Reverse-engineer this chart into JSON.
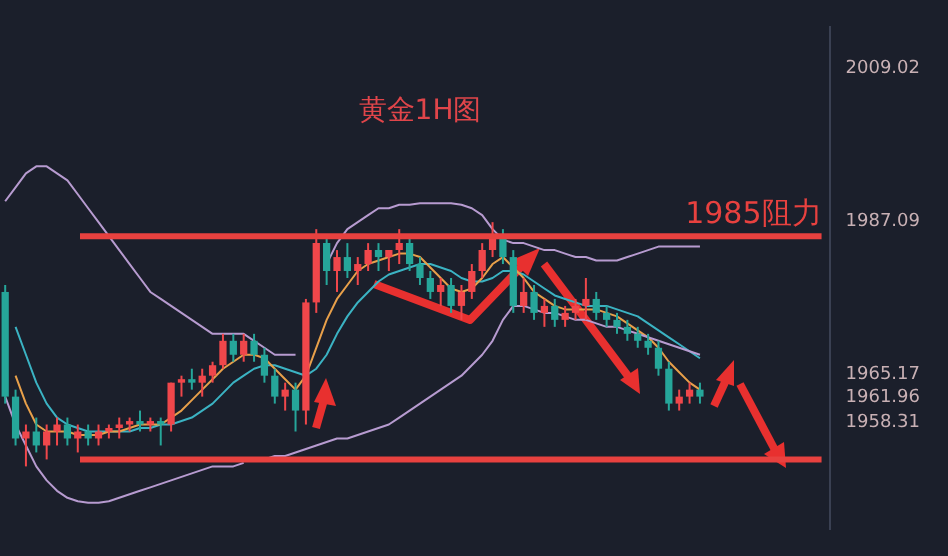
{
  "chart_data": {
    "type": "candlestick",
    "title": "黄金1H图",
    "categories": [
      null,
      null,
      null,
      null,
      null,
      null,
      null,
      null,
      null,
      null,
      null,
      null,
      null,
      null,
      null,
      null,
      null,
      null,
      null,
      null,
      null,
      null,
      null,
      null,
      null,
      null,
      null,
      null,
      null,
      null,
      null,
      null,
      null,
      null,
      null,
      null,
      null,
      null,
      null,
      null,
      null,
      null,
      null,
      null,
      null,
      null,
      null,
      null,
      null,
      null,
      null,
      null,
      null,
      null,
      null,
      null,
      null,
      null,
      null,
      null,
      null,
      null,
      null,
      null,
      null,
      null,
      null,
      null,
      null,
      null,
      null,
      null,
      null,
      null,
      null,
      null,
      null,
      null,
      null,
      null
    ],
    "ohlc": [
      [
        1977,
        1978,
        1961,
        1962
      ],
      [
        1962,
        1963,
        1955,
        1956
      ],
      [
        1956,
        1958,
        1952,
        1957
      ],
      [
        1957,
        1959,
        1954,
        1955
      ],
      [
        1955,
        1958,
        1953,
        1957
      ],
      [
        1957,
        1959,
        1955,
        1958
      ],
      [
        1958,
        1959,
        1955,
        1956
      ],
      [
        1956,
        1958,
        1954,
        1957
      ],
      [
        1957,
        1958,
        1955,
        1956
      ],
      [
        1956,
        1958,
        1955,
        1957
      ],
      [
        1957,
        1958,
        1956,
        1957.5
      ],
      [
        1957.5,
        1959,
        1956,
        1958
      ],
      [
        1958,
        1959,
        1957,
        1958.5
      ],
      [
        1958.5,
        1960,
        1957,
        1958
      ],
      [
        1958,
        1959,
        1957,
        1958.5
      ],
      [
        1958.5,
        1959,
        1955,
        1958
      ],
      [
        1958,
        1964,
        1957,
        1964
      ],
      [
        1964,
        1965,
        1962,
        1964.5
      ],
      [
        1964.5,
        1966,
        1963,
        1964
      ],
      [
        1964,
        1966,
        1962,
        1965
      ],
      [
        1965,
        1967,
        1964,
        1966.5
      ],
      [
        1966.5,
        1971,
        1966,
        1970
      ],
      [
        1970,
        1971,
        1967,
        1968
      ],
      [
        1968,
        1971,
        1967,
        1970
      ],
      [
        1970,
        1971,
        1967,
        1968
      ],
      [
        1968,
        1969,
        1964,
        1965
      ],
      [
        1965,
        1966,
        1961,
        1962
      ],
      [
        1962,
        1964,
        1960,
        1963
      ],
      [
        1963,
        1964,
        1957,
        1960
      ],
      [
        1960,
        1976,
        1958,
        1975.5
      ],
      [
        1975.5,
        1986,
        1974,
        1984
      ],
      [
        1984,
        1985,
        1978,
        1980
      ],
      [
        1980,
        1983,
        1977,
        1982
      ],
      [
        1982,
        1984,
        1979,
        1980
      ],
      [
        1980,
        1982,
        1978,
        1981
      ],
      [
        1981,
        1984,
        1980,
        1983
      ],
      [
        1983,
        1984,
        1980,
        1982
      ],
      [
        1982,
        1983,
        1980,
        1983
      ],
      [
        1983,
        1986,
        1981,
        1984
      ],
      [
        1984,
        1985,
        1980,
        1981
      ],
      [
        1981,
        1982,
        1978,
        1979
      ],
      [
        1979,
        1980,
        1976,
        1977
      ],
      [
        1977,
        1979,
        1975,
        1978
      ],
      [
        1978,
        1979,
        1974,
        1975
      ],
      [
        1975,
        1978,
        1973,
        1977
      ],
      [
        1977,
        1981,
        1976,
        1980
      ],
      [
        1980,
        1984,
        1979,
        1983
      ],
      [
        1983,
        1987,
        1982,
        1985
      ],
      [
        1985,
        1986,
        1981,
        1982
      ],
      [
        1982,
        1983,
        1974,
        1975
      ],
      [
        1975,
        1979,
        1974,
        1977
      ],
      [
        1977,
        1978,
        1973,
        1974
      ],
      [
        1974,
        1976,
        1972,
        1975
      ],
      [
        1975,
        1976,
        1972,
        1973
      ],
      [
        1973,
        1975,
        1972,
        1974
      ],
      [
        1974,
        1976,
        1973,
        1975
      ],
      [
        1975,
        1979,
        1973,
        1976
      ],
      [
        1976,
        1977,
        1973,
        1974
      ],
      [
        1974,
        1975,
        1972,
        1973
      ],
      [
        1973,
        1974,
        1971,
        1972
      ],
      [
        1972,
        1973,
        1970,
        1971
      ],
      [
        1971,
        1972,
        1969,
        1970
      ],
      [
        1970,
        1971,
        1968,
        1969
      ],
      [
        1969,
        1970,
        1965,
        1966
      ],
      [
        1966,
        1967,
        1960,
        1961
      ],
      [
        1961,
        1963,
        1960,
        1962
      ],
      [
        1962,
        1964,
        1961,
        1963
      ],
      [
        1963,
        1964,
        1961,
        1962
      ],
      null,
      null,
      null,
      null,
      null,
      null,
      null,
      null,
      null,
      null,
      null,
      null
    ],
    "colors": [
      "#26a69a",
      "#26a69a",
      "#f0474b",
      "#26a69a",
      "#f0474b",
      "#f0474b",
      "#26a69a",
      "#f0474b",
      "#26a69a",
      "#f0474b",
      "#f0474b",
      "#f0474b",
      "#f0474b",
      "#26a69a",
      "#f0474b",
      "#26a69a",
      "#f0474b",
      "#f0474b",
      "#26a69a",
      "#f0474b",
      "#f0474b",
      "#f0474b",
      "#26a69a",
      "#f0474b",
      "#26a69a",
      "#26a69a",
      "#26a69a",
      "#f0474b",
      "#26a69a",
      "#f0474b",
      "#f0474b",
      "#26a69a",
      "#f0474b",
      "#26a69a",
      "#f0474b",
      "#f0474b",
      "#26a69a",
      "#f0474b",
      "#f0474b",
      "#26a69a",
      "#26a69a",
      "#26a69a",
      "#f0474b",
      "#26a69a",
      "#f0474b",
      "#f0474b",
      "#f0474b",
      "#f0474b",
      "#26a69a",
      "#26a69a",
      "#f0474b",
      "#26a69a",
      "#f0474b",
      "#26a69a",
      "#f0474b",
      "#f0474b",
      "#f0474b",
      "#26a69a",
      "#26a69a",
      "#26a69a",
      "#26a69a",
      "#26a69a",
      "#26a69a",
      "#26a69a",
      "#26a69a",
      "#f0474b",
      "#f0474b",
      "#26a69a",
      null,
      null,
      null,
      null,
      null,
      null,
      null,
      null,
      null,
      null,
      null,
      null
    ],
    "series": [
      {
        "type": "line",
        "color": "#b79bd0",
        "values": [
          1990,
          1992,
          1994,
          1995,
          1995,
          1994,
          1993,
          1991,
          1989,
          1987,
          1985,
          1983,
          1981,
          1979,
          1977,
          1976,
          1975,
          1974,
          1973,
          1972,
          1971,
          1971,
          1971,
          1971,
          1970,
          1969,
          1968,
          1968,
          1968,
          null,
          null,
          1981,
          1984,
          1986,
          1987,
          1988,
          1989,
          1989,
          1989.5,
          1989.5,
          1989.7,
          1989.7,
          1989.7,
          1989.7,
          1989.5,
          1989,
          1988,
          1986,
          1984.5,
          1984,
          1984,
          1983.5,
          1983,
          1983,
          1982.5,
          1982,
          1982,
          1981.5,
          1981.5,
          1981.5,
          1982,
          1982.5,
          1983,
          1983.5,
          1983.5,
          1983.5,
          1983.5,
          1983.5,
          null,
          null,
          null,
          null,
          null,
          null,
          null,
          null,
          null,
          null,
          null,
          null
        ]
      },
      {
        "type": "line",
        "color": "#b79bd0",
        "values": [
          1962,
          1958,
          1955,
          1952,
          1950,
          1948.5,
          1947.5,
          1947,
          1946.8,
          1946.8,
          1947,
          1947.5,
          1948,
          1948.5,
          1949,
          1949.5,
          1950,
          1950.5,
          1951,
          1951.5,
          1952,
          1952,
          1952,
          1952.5,
          null,
          1953,
          1953.5,
          1953.5,
          1954,
          1954.5,
          1955,
          1955.5,
          1956,
          1956,
          1956.5,
          1957,
          1957.5,
          1958,
          1959,
          1960,
          1961,
          1962,
          1963,
          1964,
          1965,
          1966.5,
          1968,
          1970,
          1973,
          1975,
          1975,
          1974.5,
          1974,
          1974,
          1973.5,
          1973,
          1973,
          1972.5,
          1972,
          1972,
          1971.5,
          1971,
          1970.5,
          1970,
          1969.5,
          1969,
          1968.5,
          1968,
          null,
          null,
          null,
          null,
          null,
          null,
          null,
          null,
          null,
          null,
          null,
          null
        ]
      },
      {
        "type": "line",
        "color": "#e8a04a",
        "values": [
          null,
          1965,
          1961,
          1958,
          1957,
          1957,
          1957,
          1956.5,
          1956.5,
          1956.5,
          1957,
          1957,
          1957.5,
          1958,
          1958,
          1958,
          1959,
          1960,
          1961.5,
          1963,
          1964.5,
          1966,
          1967,
          1968,
          1968,
          1967.5,
          1966,
          1964.5,
          1963,
          1965,
          1969,
          1973,
          1976,
          1978,
          1980,
          1981,
          1981.5,
          1982,
          1982.5,
          1982.5,
          1982,
          1980.5,
          1979,
          1977.5,
          1977,
          1977.5,
          1979,
          1981,
          1982,
          1980.5,
          1979,
          1977,
          1976,
          1975,
          1974.5,
          1974.5,
          1974.5,
          1974.5,
          1974,
          1973.5,
          1972.5,
          1971.5,
          1970.5,
          1969,
          1967,
          1965.5,
          1964,
          1963,
          null,
          null,
          null,
          null,
          null,
          null,
          null,
          null,
          null,
          null,
          null,
          null
        ]
      },
      {
        "type": "line",
        "color": "#3bb3c3",
        "values": [
          null,
          1972,
          1968,
          1964,
          1961,
          1959,
          1958,
          1957.5,
          1957,
          1957,
          1957,
          1957,
          1957,
          1957.5,
          1957.5,
          1958,
          1958,
          1958.5,
          1959,
          1960,
          1961,
          1962.5,
          1964,
          1965,
          1966,
          1966.5,
          1966.5,
          1966,
          1965.5,
          1965,
          1966,
          1968,
          1971,
          1973.5,
          1975.5,
          1977,
          1978.5,
          1979.5,
          1980,
          1980.5,
          1981,
          1981,
          1980.5,
          1980,
          1979,
          1978.5,
          1978.5,
          1979,
          1980,
          1980,
          1979.5,
          1978.5,
          1977.5,
          1976.5,
          1976,
          1975.5,
          1975,
          1975,
          1975,
          1974.5,
          1974,
          1973.5,
          1972.5,
          1971.5,
          1970.5,
          1969.5,
          1968.5,
          1967.5,
          null,
          null,
          null,
          null,
          null,
          null,
          null,
          null,
          null,
          null,
          null,
          null
        ]
      }
    ],
    "ylim": [
      1943,
      2015
    ],
    "yticks": [
      2009.02,
      1987.09,
      1965.17,
      1961.96,
      1958.31
    ],
    "tick_labels": "y",
    "legend": false,
    "grid": false,
    "marker": "none",
    "ref_lines": [
      {
        "axis": "y",
        "value": 1985,
        "label": "1985阻力",
        "color": "#e8413f"
      },
      {
        "axis": "y",
        "value": 1953,
        "label": null,
        "color": "#e8413f"
      }
    ]
  }
}
